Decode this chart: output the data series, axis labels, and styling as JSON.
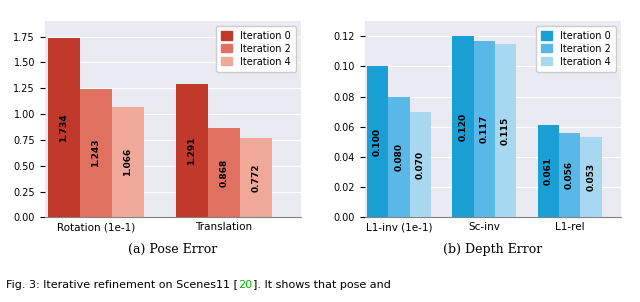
{
  "left_categories": [
    "Rotation (1e-1)",
    "Translation"
  ],
  "left_series": {
    "Iteration 0": [
      1.734,
      1.291
    ],
    "Iteration 2": [
      1.243,
      0.868
    ],
    "Iteration 4": [
      1.066,
      0.772
    ]
  },
  "left_colors": [
    "#c0392b",
    "#e07060",
    "#f0a898"
  ],
  "left_ylim": [
    0,
    1.9
  ],
  "left_yticks": [
    0.0,
    0.25,
    0.5,
    0.75,
    1.0,
    1.25,
    1.5,
    1.75
  ],
  "left_title": "(a) Pose Error",
  "right_categories": [
    "L1-inv (1e-1)",
    "Sc-inv",
    "L1-rel"
  ],
  "right_series": {
    "Iteration 0": [
      0.1,
      0.12,
      0.061
    ],
    "Iteration 2": [
      0.08,
      0.117,
      0.056
    ],
    "Iteration 4": [
      0.07,
      0.115,
      0.053
    ]
  },
  "right_colors": [
    "#1a9fd4",
    "#5ab8e8",
    "#a8d8f0"
  ],
  "right_ylim": [
    0,
    0.13
  ],
  "right_yticks": [
    0.0,
    0.02,
    0.04,
    0.06,
    0.08,
    0.1,
    0.12
  ],
  "right_title": "(b) Depth Error",
  "legend_labels": [
    "Iteration 0",
    "Iteration 2",
    "Iteration 4"
  ],
  "bg_color": "#eaeaf2",
  "caption_black": "Fig. 3: Iterative refinement on Scenes11 [",
  "caption_green": "20",
  "caption_black2": "]. It shows that pose and"
}
